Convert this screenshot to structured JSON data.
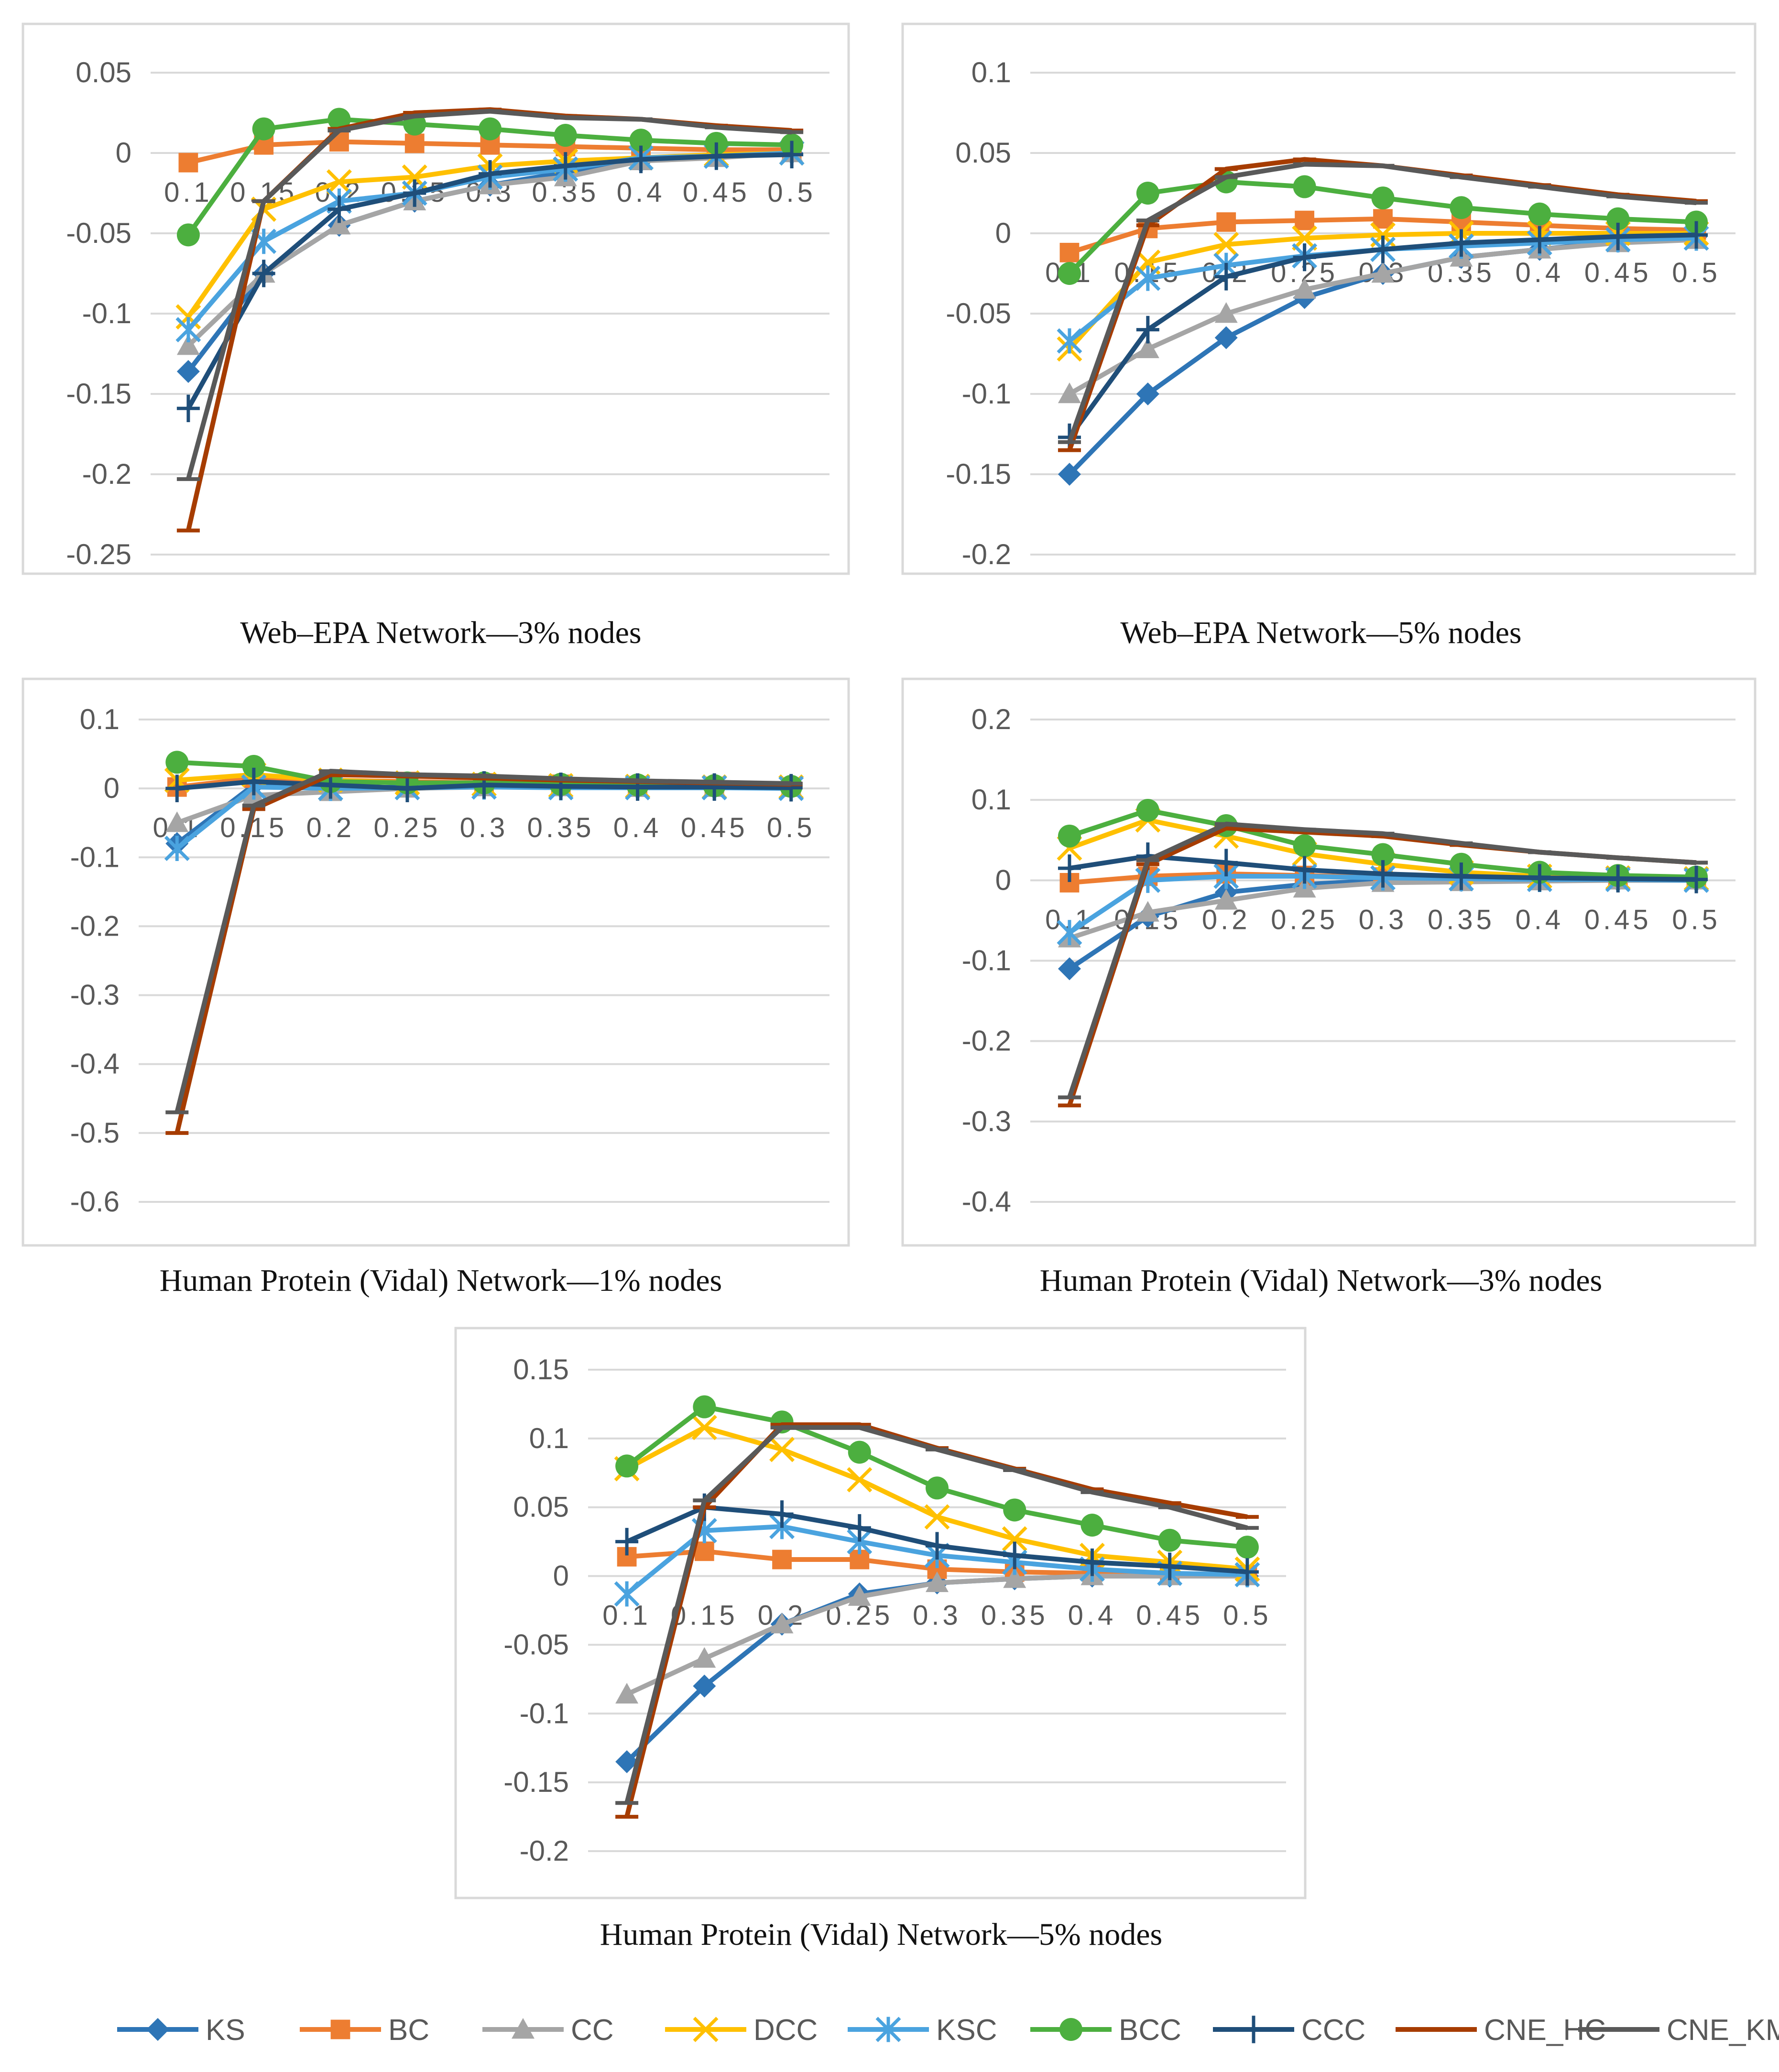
{
  "colors": {
    "KS": "#2E75B6",
    "BC": "#ED7D31",
    "CC": "#A5A5A5",
    "DCC": "#FFC000",
    "KSC": "#4AA3DF",
    "BCC": "#4CAF3F",
    "CCC": "#1F4E79",
    "CNE_HC": "#A63C00",
    "CNE_KM": "#595959",
    "grid": "#D9D9D9",
    "axis_text": "#595959",
    "frame": "#D9D9D9"
  },
  "markers": {
    "KS": "diamond",
    "BC": "square",
    "CC": "triangle",
    "DCC": "x",
    "KSC": "asterisk",
    "BCC": "circle",
    "CCC": "plus",
    "CNE_HC": "dash",
    "CNE_KM": "dash"
  },
  "legend": {
    "position": "bottom",
    "entries": [
      "KS",
      "BC",
      "CC",
      "DCC",
      "KSC",
      "BCC",
      "CCC",
      "CNE_HC",
      "CNE_KM"
    ]
  },
  "chart_data": [
    {
      "type": "line",
      "title": "Web–EPA Network—3% nodes",
      "xlabel": "",
      "ylabel": "",
      "categories": [
        "0.1",
        "0.15",
        "0.2",
        "0.25",
        "0.3",
        "0.35",
        "0.4",
        "0.45",
        "0.5"
      ],
      "ylim": [
        -0.25,
        0.05
      ],
      "yticks": [
        "0.05",
        "0",
        "-0.05",
        "-0.1",
        "-0.15",
        "-0.2",
        "-0.25"
      ],
      "grid": true,
      "series": [
        {
          "name": "KS",
          "values": [
            -0.136,
            -0.075,
            -0.045,
            -0.03,
            -0.02,
            -0.012,
            -0.005,
            -0.002,
            0.0
          ]
        },
        {
          "name": "BC",
          "values": [
            -0.006,
            0.005,
            0.007,
            0.006,
            0.005,
            0.004,
            0.003,
            0.002,
            0.002
          ]
        },
        {
          "name": "CC",
          "values": [
            -0.12,
            -0.075,
            -0.045,
            -0.03,
            -0.02,
            -0.015,
            -0.005,
            -0.003,
            0.0
          ]
        },
        {
          "name": "DCC",
          "values": [
            -0.102,
            -0.035,
            -0.018,
            -0.015,
            -0.008,
            -0.005,
            -0.003,
            -0.001,
            0.0
          ]
        },
        {
          "name": "KSC",
          "values": [
            -0.11,
            -0.055,
            -0.03,
            -0.025,
            -0.015,
            -0.01,
            -0.003,
            -0.002,
            0.0
          ]
        },
        {
          "name": "BCC",
          "values": [
            -0.051,
            0.015,
            0.021,
            0.018,
            0.015,
            0.011,
            0.008,
            0.006,
            0.005
          ]
        },
        {
          "name": "CCC",
          "values": [
            -0.159,
            -0.075,
            -0.035,
            -0.025,
            -0.013,
            -0.008,
            -0.004,
            -0.002,
            -0.001
          ]
        },
        {
          "name": "CNE_HC",
          "values": [
            -0.235,
            -0.03,
            0.015,
            0.025,
            0.027,
            0.023,
            0.021,
            0.017,
            0.014
          ]
        },
        {
          "name": "CNE_KM",
          "values": [
            -0.203,
            -0.03,
            0.014,
            0.023,
            0.026,
            0.022,
            0.021,
            0.016,
            0.013
          ]
        }
      ]
    },
    {
      "type": "line",
      "title": "Web–EPA Network—5% nodes",
      "xlabel": "",
      "ylabel": "",
      "categories": [
        "0.1",
        "0.15",
        "0.2",
        "0.25",
        "0.3",
        "0.35",
        "0.4",
        "0.45",
        "0.5"
      ],
      "ylim": [
        -0.2,
        0.1
      ],
      "yticks": [
        "0.1",
        "0.05",
        "0",
        "-0.05",
        "-0.1",
        "-0.15",
        "-0.2"
      ],
      "grid": true,
      "series": [
        {
          "name": "KS",
          "values": [
            -0.15,
            -0.1,
            -0.065,
            -0.04,
            -0.025,
            -0.015,
            -0.01,
            -0.005,
            -0.002
          ]
        },
        {
          "name": "BC",
          "values": [
            -0.012,
            0.003,
            0.007,
            0.008,
            0.009,
            0.007,
            0.005,
            0.003,
            0.002
          ]
        },
        {
          "name": "CC",
          "values": [
            -0.1,
            -0.072,
            -0.05,
            -0.035,
            -0.025,
            -0.015,
            -0.01,
            -0.006,
            -0.004
          ]
        },
        {
          "name": "DCC",
          "values": [
            -0.072,
            -0.018,
            -0.007,
            -0.003,
            -0.001,
            0.0,
            0.0,
            0.0,
            0.0
          ]
        },
        {
          "name": "KSC",
          "values": [
            -0.067,
            -0.028,
            -0.02,
            -0.014,
            -0.01,
            -0.008,
            -0.006,
            -0.004,
            -0.003
          ]
        },
        {
          "name": "BCC",
          "values": [
            -0.025,
            0.025,
            0.032,
            0.029,
            0.022,
            0.016,
            0.012,
            0.009,
            0.007
          ]
        },
        {
          "name": "CCC",
          "values": [
            -0.127,
            -0.06,
            -0.027,
            -0.015,
            -0.01,
            -0.006,
            -0.004,
            -0.002,
            -0.001
          ]
        },
        {
          "name": "CNE_HC",
          "values": [
            -0.135,
            0.005,
            0.04,
            0.046,
            0.042,
            0.036,
            0.03,
            0.024,
            0.02
          ]
        },
        {
          "name": "CNE_KM",
          "values": [
            -0.13,
            0.008,
            0.035,
            0.043,
            0.042,
            0.035,
            0.029,
            0.023,
            0.019
          ]
        }
      ]
    },
    {
      "type": "line",
      "title": "Human Protein (Vidal) Network—1% nodes",
      "xlabel": "",
      "ylabel": "",
      "categories": [
        "0.1",
        "0.15",
        "0.2",
        "0.25",
        "0.3",
        "0.35",
        "0.4",
        "0.45",
        "0.5"
      ],
      "ylim": [
        -0.6,
        0.1
      ],
      "yticks": [
        "0.1",
        "0",
        "-0.1",
        "-0.2",
        "-0.3",
        "-0.4",
        "-0.5",
        "-0.6"
      ],
      "grid": true,
      "series": [
        {
          "name": "KS",
          "values": [
            -0.08,
            0.005,
            0.0,
            0.002,
            0.003,
            0.002,
            0.001,
            0.001,
            0.001
          ]
        },
        {
          "name": "BC",
          "values": [
            0.002,
            0.015,
            0.012,
            0.01,
            0.008,
            0.006,
            0.004,
            0.003,
            0.002
          ]
        },
        {
          "name": "CC",
          "values": [
            -0.05,
            -0.01,
            -0.005,
            0.0,
            0.002,
            0.002,
            0.001,
            0.001,
            0.001
          ]
        },
        {
          "name": "DCC",
          "values": [
            0.012,
            0.02,
            0.012,
            0.008,
            0.006,
            0.004,
            0.003,
            0.002,
            0.002
          ]
        },
        {
          "name": "KSC",
          "values": [
            -0.087,
            0.002,
            0.0,
            0.001,
            0.002,
            0.001,
            0.001,
            0.001,
            0.0
          ]
        },
        {
          "name": "BCC",
          "values": [
            0.038,
            0.032,
            0.01,
            0.008,
            0.008,
            0.006,
            0.005,
            0.004,
            0.003
          ]
        },
        {
          "name": "CCC",
          "values": [
            0.0,
            0.01,
            0.005,
            0.0,
            0.005,
            0.003,
            0.002,
            0.002,
            0.001
          ]
        },
        {
          "name": "CNE_HC",
          "values": [
            -0.5,
            -0.03,
            0.02,
            0.018,
            0.015,
            0.012,
            0.01,
            0.008,
            0.006
          ]
        },
        {
          "name": "CNE_KM",
          "values": [
            -0.47,
            -0.025,
            0.025,
            0.02,
            0.018,
            0.014,
            0.011,
            0.009,
            0.007
          ]
        }
      ]
    },
    {
      "type": "line",
      "title": "Human Protein (Vidal) Network—3% nodes",
      "xlabel": "",
      "ylabel": "",
      "categories": [
        "0.1",
        "0.15",
        "0.2",
        "0.25",
        "0.3",
        "0.35",
        "0.4",
        "0.45",
        "0.5"
      ],
      "ylim": [
        -0.4,
        0.2
      ],
      "yticks": [
        "0.2",
        "0.1",
        "0",
        "-0.1",
        "-0.2",
        "-0.3",
        "-0.4"
      ],
      "grid": true,
      "series": [
        {
          "name": "KS",
          "values": [
            -0.11,
            -0.045,
            -0.015,
            -0.005,
            0.0,
            0.0,
            0.0,
            0.0,
            0.0
          ]
        },
        {
          "name": "BC",
          "values": [
            -0.003,
            0.005,
            0.008,
            0.006,
            0.004,
            0.003,
            0.002,
            0.001,
            0.001
          ]
        },
        {
          "name": "CC",
          "values": [
            -0.072,
            -0.04,
            -0.025,
            -0.01,
            -0.003,
            -0.002,
            -0.001,
            0.0,
            0.0
          ]
        },
        {
          "name": "DCC",
          "values": [
            0.04,
            0.075,
            0.055,
            0.033,
            0.02,
            0.01,
            0.005,
            0.003,
            0.002
          ]
        },
        {
          "name": "KSC",
          "values": [
            -0.065,
            0.0,
            0.005,
            0.005,
            0.003,
            0.002,
            0.001,
            0.001,
            0.0
          ]
        },
        {
          "name": "BCC",
          "values": [
            0.055,
            0.087,
            0.068,
            0.043,
            0.032,
            0.02,
            0.01,
            0.006,
            0.004
          ]
        },
        {
          "name": "CCC",
          "values": [
            0.015,
            0.03,
            0.022,
            0.013,
            0.008,
            0.005,
            0.003,
            0.002,
            0.001
          ]
        },
        {
          "name": "CNE_HC",
          "values": [
            -0.28,
            0.02,
            0.065,
            0.06,
            0.055,
            0.044,
            0.035,
            0.028,
            0.022
          ]
        },
        {
          "name": "CNE_KM",
          "values": [
            -0.27,
            0.025,
            0.07,
            0.063,
            0.058,
            0.046,
            0.035,
            0.028,
            0.022
          ]
        }
      ]
    },
    {
      "type": "line",
      "title": "Human Protein (Vidal) Network—5% nodes",
      "xlabel": "",
      "ylabel": "",
      "categories": [
        "0.1",
        "0.15",
        "0.2",
        "0.25",
        "0.3",
        "0.35",
        "0.4",
        "0.45",
        "0.5"
      ],
      "ylim": [
        -0.2,
        0.15
      ],
      "yticks": [
        "0.15",
        "0.1",
        "0.05",
        "0",
        "-0.05",
        "-0.1",
        "-0.15",
        "-0.2"
      ],
      "grid": true,
      "series": [
        {
          "name": "KS",
          "values": [
            -0.135,
            -0.08,
            -0.035,
            -0.013,
            -0.005,
            -0.002,
            0.0,
            0.0,
            0.0
          ]
        },
        {
          "name": "BC",
          "values": [
            0.014,
            0.018,
            0.012,
            0.012,
            0.005,
            0.003,
            0.002,
            0.001,
            0.001
          ]
        },
        {
          "name": "CC",
          "values": [
            -0.086,
            -0.06,
            -0.035,
            -0.015,
            -0.005,
            -0.002,
            0.0,
            0.0,
            0.0
          ]
        },
        {
          "name": "DCC",
          "values": [
            0.078,
            0.108,
            0.092,
            0.07,
            0.043,
            0.027,
            0.015,
            0.01,
            0.005
          ]
        },
        {
          "name": "KSC",
          "values": [
            -0.013,
            0.033,
            0.036,
            0.025,
            0.015,
            0.01,
            0.005,
            0.002,
            0.001
          ]
        },
        {
          "name": "BCC",
          "values": [
            0.08,
            0.123,
            0.112,
            0.09,
            0.064,
            0.048,
            0.037,
            0.026,
            0.021
          ]
        },
        {
          "name": "CCC",
          "values": [
            0.025,
            0.05,
            0.045,
            0.035,
            0.022,
            0.015,
            0.01,
            0.007,
            0.003
          ]
        },
        {
          "name": "CNE_HC",
          "values": [
            -0.175,
            0.05,
            0.11,
            0.11,
            0.093,
            0.078,
            0.063,
            0.053,
            0.043
          ]
        },
        {
          "name": "CNE_KM",
          "values": [
            -0.165,
            0.055,
            0.108,
            0.108,
            0.092,
            0.077,
            0.061,
            0.05,
            0.035
          ]
        }
      ]
    }
  ]
}
